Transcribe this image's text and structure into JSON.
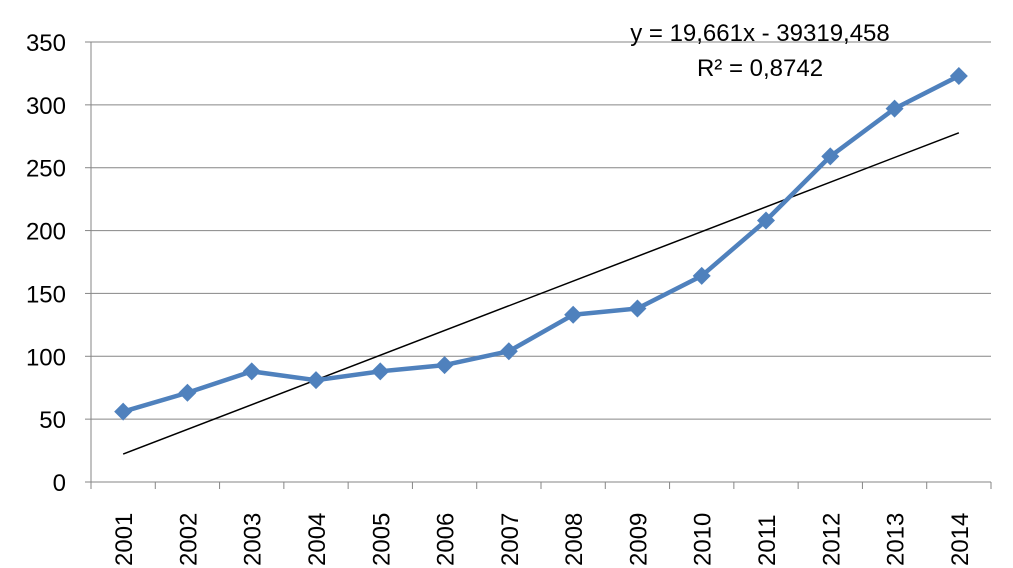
{
  "chart_data": {
    "type": "line",
    "x": [
      "2001",
      "2002",
      "2003",
      "2004",
      "2005",
      "2006",
      "2007",
      "2008",
      "2009",
      "2010",
      "2011",
      "2012",
      "2013",
      "2014"
    ],
    "series": [
      {
        "values": [
          56,
          71,
          88,
          81,
          88,
          93,
          104,
          133,
          138,
          164,
          208,
          259,
          297,
          323
        ]
      }
    ],
    "trendline": {
      "type": "linear",
      "slope": 19.661,
      "intercept": -39319.458,
      "equation_label": "y = 19,661x - 39319,458",
      "r2_label": "R² = 0,8742"
    },
    "ylim": [
      0,
      350
    ],
    "yticks": [
      "0",
      "50",
      "100",
      "150",
      "200",
      "250",
      "300",
      "350"
    ],
    "grid": true,
    "legend": "none",
    "colors": {
      "series": "#4F81BD",
      "trendline": "#000000",
      "grid": "#868686",
      "axis": "#868686"
    }
  }
}
